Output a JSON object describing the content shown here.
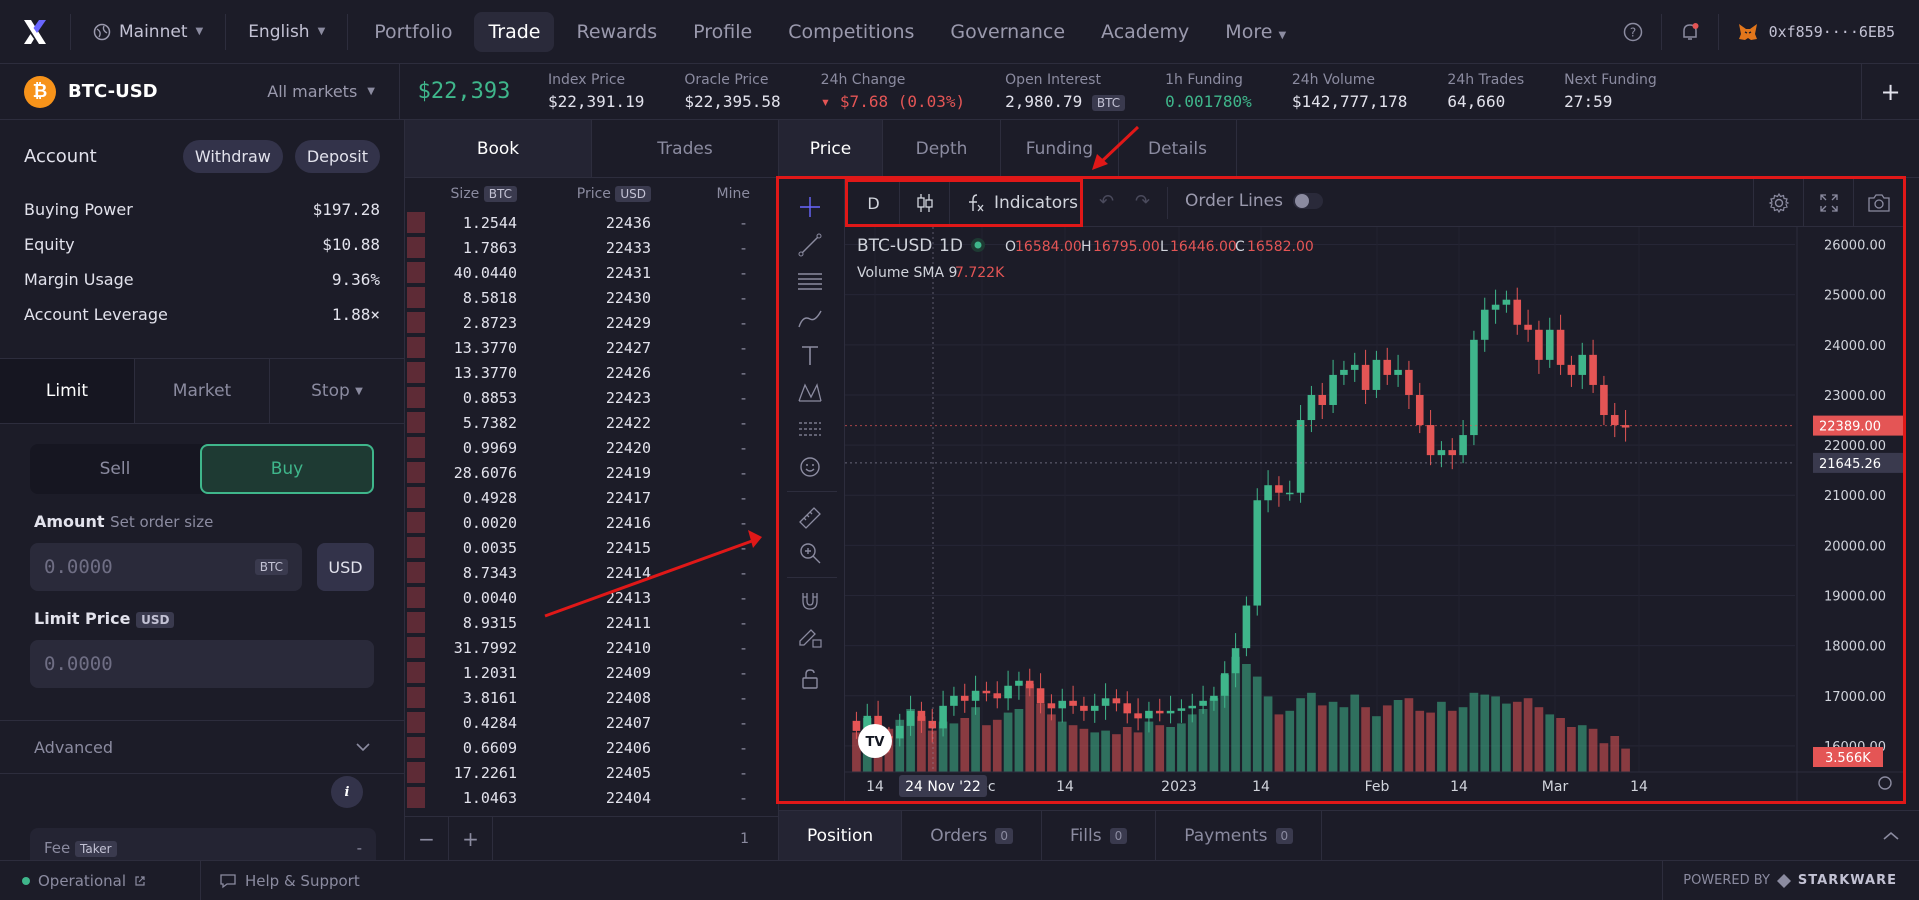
{
  "nav": {
    "logo": "dYdX",
    "network": "Mainnet",
    "language": "English",
    "links": [
      "Portfolio",
      "Trade",
      "Rewards",
      "Profile",
      "Competitions",
      "Governance",
      "Academy",
      "More"
    ],
    "active_link": "Trade",
    "wallet": "0xf859····6EB5"
  },
  "market": {
    "symbol": "BTC-USD",
    "all_markets": "All markets",
    "last_price": "$22,393",
    "stats": [
      {
        "label": "Index Price",
        "value": "$22,391.19"
      },
      {
        "label": "Oracle Price",
        "value": "$22,395.58"
      },
      {
        "label": "24h Change",
        "value": "▾ $7.68 (0.03%)",
        "tone": "red"
      },
      {
        "label": "Open Interest",
        "value": "2,980.79",
        "badge": "BTC"
      },
      {
        "label": "1h Funding",
        "value": "0.001780%",
        "tone": "green"
      },
      {
        "label": "24h Volume",
        "value": "$142,777,178"
      },
      {
        "label": "24h Trades",
        "value": "64,660"
      },
      {
        "label": "Next Funding",
        "value": "27:59"
      }
    ]
  },
  "account": {
    "title": "Account",
    "withdraw": "Withdraw",
    "deposit": "Deposit",
    "rows": [
      {
        "k": "Buying Power",
        "v": "$197.28"
      },
      {
        "k": "Equity",
        "v": "$10.88"
      },
      {
        "k": "Margin Usage",
        "v": "9.36%"
      },
      {
        "k": "Account Leverage",
        "v": "1.88×"
      }
    ]
  },
  "order_form": {
    "tabs": [
      "Limit",
      "Market",
      "Stop"
    ],
    "active_tab": "Limit",
    "sell": "Sell",
    "buy": "Buy",
    "amount_label": "Amount",
    "amount_sub": "Set order size",
    "amount_placeholder": "0.0000",
    "amount_unit": "BTC",
    "usd_toggle": "USD",
    "limit_label": "Limit Price",
    "limit_unit": "USD",
    "limit_placeholder": "0.0000",
    "advanced": "Advanced",
    "fee_label": "Fee",
    "fee_badge": "Taker",
    "fee_value": "-"
  },
  "book": {
    "tabs": [
      "Book",
      "Trades"
    ],
    "active_tab": "Book",
    "headers": {
      "size": "Size",
      "size_unit": "BTC",
      "price": "Price",
      "price_unit": "USD",
      "mine": "Mine"
    },
    "rows": [
      {
        "size": "1.2544",
        "price": "22436",
        "mine": "-"
      },
      {
        "size": "1.7863",
        "price": "22433",
        "mine": "-"
      },
      {
        "size": "40.0440",
        "price": "22431",
        "mine": "-"
      },
      {
        "size": "8.5818",
        "price": "22430",
        "mine": "-"
      },
      {
        "size": "2.8723",
        "price": "22429",
        "mine": "-"
      },
      {
        "size": "13.3770",
        "price": "22427",
        "mine": "-"
      },
      {
        "size": "13.3770",
        "price": "22426",
        "mine": "-"
      },
      {
        "size": "0.8853",
        "price": "22423",
        "mine": "-"
      },
      {
        "size": "5.7382",
        "price": "22422",
        "mine": "-"
      },
      {
        "size": "0.9969",
        "price": "22420",
        "mine": "-"
      },
      {
        "size": "28.6076",
        "price": "22419",
        "mine": "-"
      },
      {
        "size": "0.4928",
        "price": "22417",
        "mine": "-"
      },
      {
        "size": "0.0020",
        "price": "22416",
        "mine": "-"
      },
      {
        "size": "0.0035",
        "price": "22415",
        "mine": "-"
      },
      {
        "size": "8.7343",
        "price": "22414",
        "mine": "-"
      },
      {
        "size": "0.0040",
        "price": "22413",
        "mine": "-"
      },
      {
        "size": "8.9315",
        "price": "22411",
        "mine": "-"
      },
      {
        "size": "31.7992",
        "price": "22410",
        "mine": "-"
      },
      {
        "size": "1.2031",
        "price": "22409",
        "mine": "-"
      },
      {
        "size": "3.8161",
        "price": "22408",
        "mine": "-"
      },
      {
        "size": "0.4284",
        "price": "22407",
        "mine": "-"
      },
      {
        "size": "0.6609",
        "price": "22406",
        "mine": "-"
      },
      {
        "size": "17.2261",
        "price": "22405",
        "mine": "-"
      },
      {
        "size": "1.0463",
        "price": "22404",
        "mine": "-"
      }
    ],
    "zoom_out": "−",
    "zoom_in": "+",
    "grouping": "1"
  },
  "chart_tabs": [
    "Price",
    "Depth",
    "Funding",
    "Details"
  ],
  "active_chart_tab": "Price",
  "toolbar": {
    "interval": "D",
    "indicators": "Indicators",
    "order_lines": "Order Lines"
  },
  "chart_legend": {
    "symbol": "BTC-USD",
    "interval": "1D",
    "open_label": "O",
    "open": "16584.00",
    "high_label": "H",
    "high": "16795.00",
    "low_label": "L",
    "low": "16446.00",
    "close_label": "C",
    "close": "16582.00",
    "volume_label": "Volume SMA 9",
    "volume_value": "7.722K"
  },
  "chart_data": {
    "type": "candlestick",
    "y_ticks": [
      "26000.00",
      "25000.00",
      "24000.00",
      "23000.00",
      "22000.00",
      "21000.00",
      "20000.00",
      "19000.00",
      "18000.00",
      "17000.00",
      "16000.00"
    ],
    "ylim": [
      15500,
      26350
    ],
    "x_ticks": [
      "14",
      "Dec",
      "14",
      "2023",
      "14",
      "Feb",
      "14",
      "Mar",
      "14"
    ],
    "crosshair_date": "24 Nov '22",
    "current_price_label": "22389.00",
    "crosshair_price_label": "21645.26",
    "volume_label": "3.566K",
    "close_series": [
      16300,
      16600,
      16200,
      16150,
      16400,
      16700,
      16500,
      16350,
      16800,
      17000,
      16900,
      17100,
      17050,
      16950,
      17200,
      17300,
      17150,
      16850,
      16750,
      16900,
      16800,
      16700,
      16800,
      16950,
      16850,
      16650,
      16550,
      16700,
      16650,
      16700,
      16750,
      16800,
      16900,
      17000,
      17450,
      17950,
      18800,
      20900,
      21200,
      21050,
      21050,
      22500,
      23000,
      22800,
      23400,
      23500,
      23600,
      23100,
      23700,
      23400,
      23500,
      23000,
      22400,
      21800,
      21900,
      21800,
      22200,
      24100,
      24700,
      24800,
      24900,
      24400,
      24300,
      23700,
      24300,
      23600,
      23400,
      23800,
      23200,
      22600,
      22400,
      22350
    ],
    "volume_series": [
      2.2,
      3.0,
      2.6,
      2.4,
      2.9,
      3.5,
      3.1,
      2.3,
      2.8,
      2.7,
      3.0,
      3.6,
      2.6,
      2.9,
      3.3,
      3.5,
      4.9,
      3.8,
      3.2,
      2.8,
      2.6,
      2.4,
      2.2,
      2.3,
      2.1,
      2.5,
      2.2,
      2.8,
      2.6,
      2.5,
      2.7,
      3.2,
      3.5,
      4.1,
      5.4,
      6.4,
      6.0,
      5.3,
      4.2,
      3.2,
      3.4,
      4.1,
      4.4,
      3.7,
      3.9,
      3.6,
      4.3,
      3.6,
      3.1,
      3.7,
      4.0,
      4.1,
      3.4,
      3.3,
      3.9,
      3.4,
      3.6,
      4.4,
      4.3,
      4.2,
      3.8,
      3.9,
      4.1,
      3.6,
      3.2,
      3.0,
      2.5,
      2.6,
      2.4,
      1.6,
      2.0,
      1.3
    ]
  },
  "positions_tabs": [
    {
      "label": "Position",
      "count": ""
    },
    {
      "label": "Orders",
      "count": "0"
    },
    {
      "label": "Fills",
      "count": "0"
    },
    {
      "label": "Payments",
      "count": "0"
    }
  ],
  "footer": {
    "status": "Operational",
    "help": "Help & Support",
    "powered": "POWERED BY",
    "brand": "STARKWARE"
  },
  "colors": {
    "up": "#3fb68b",
    "down": "#e45555",
    "annotation": "#e01818",
    "background": "#1c1c28"
  }
}
